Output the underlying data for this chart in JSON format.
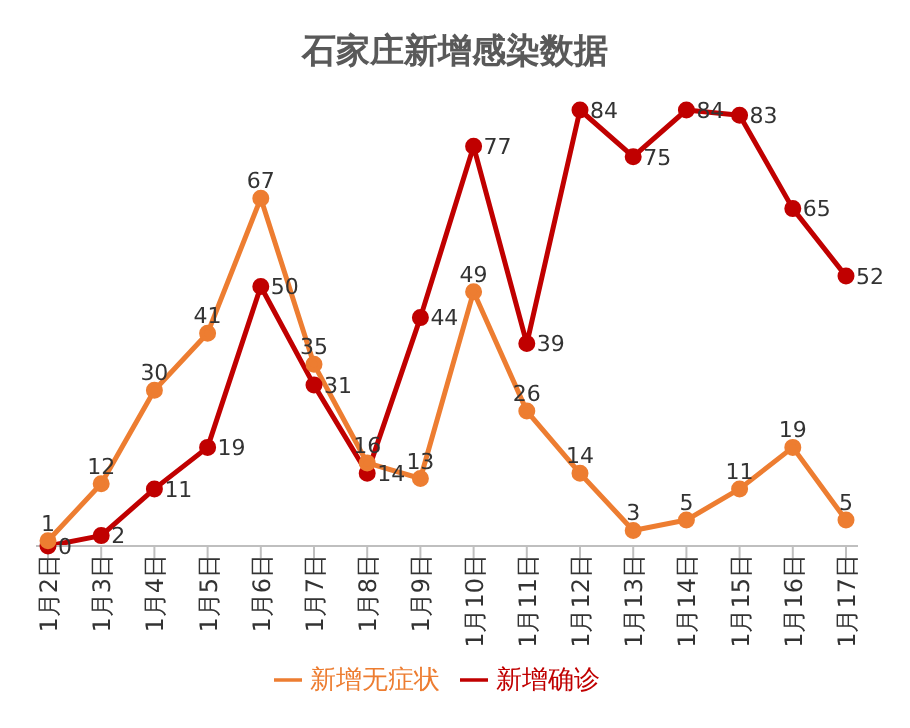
{
  "chart_data": {
    "type": "line",
    "title": "石家庄新增感染数据",
    "categories": [
      "1月2日",
      "1月3日",
      "1月4日",
      "1月5日",
      "1月6日",
      "1月7日",
      "1月8日",
      "1月9日",
      "1月10日",
      "1月11日",
      "1月12日",
      "1月13日",
      "1月14日",
      "1月15日",
      "1月16日",
      "1月17日"
    ],
    "series": [
      {
        "name": "新增确诊",
        "color": "#c00000",
        "values": [
          0,
          2,
          11,
          19,
          50,
          31,
          14,
          44,
          77,
          39,
          84,
          75,
          84,
          83,
          65,
          52
        ]
      },
      {
        "name": "新增无症状",
        "color": "#ed7d31",
        "values": [
          1,
          12,
          30,
          41,
          67,
          35,
          16,
          13,
          49,
          26,
          14,
          3,
          5,
          11,
          19,
          5
        ]
      }
    ],
    "data_labels": true,
    "legend": "bottom",
    "marker": "circle",
    "line_style": "solid",
    "grid": false
  }
}
